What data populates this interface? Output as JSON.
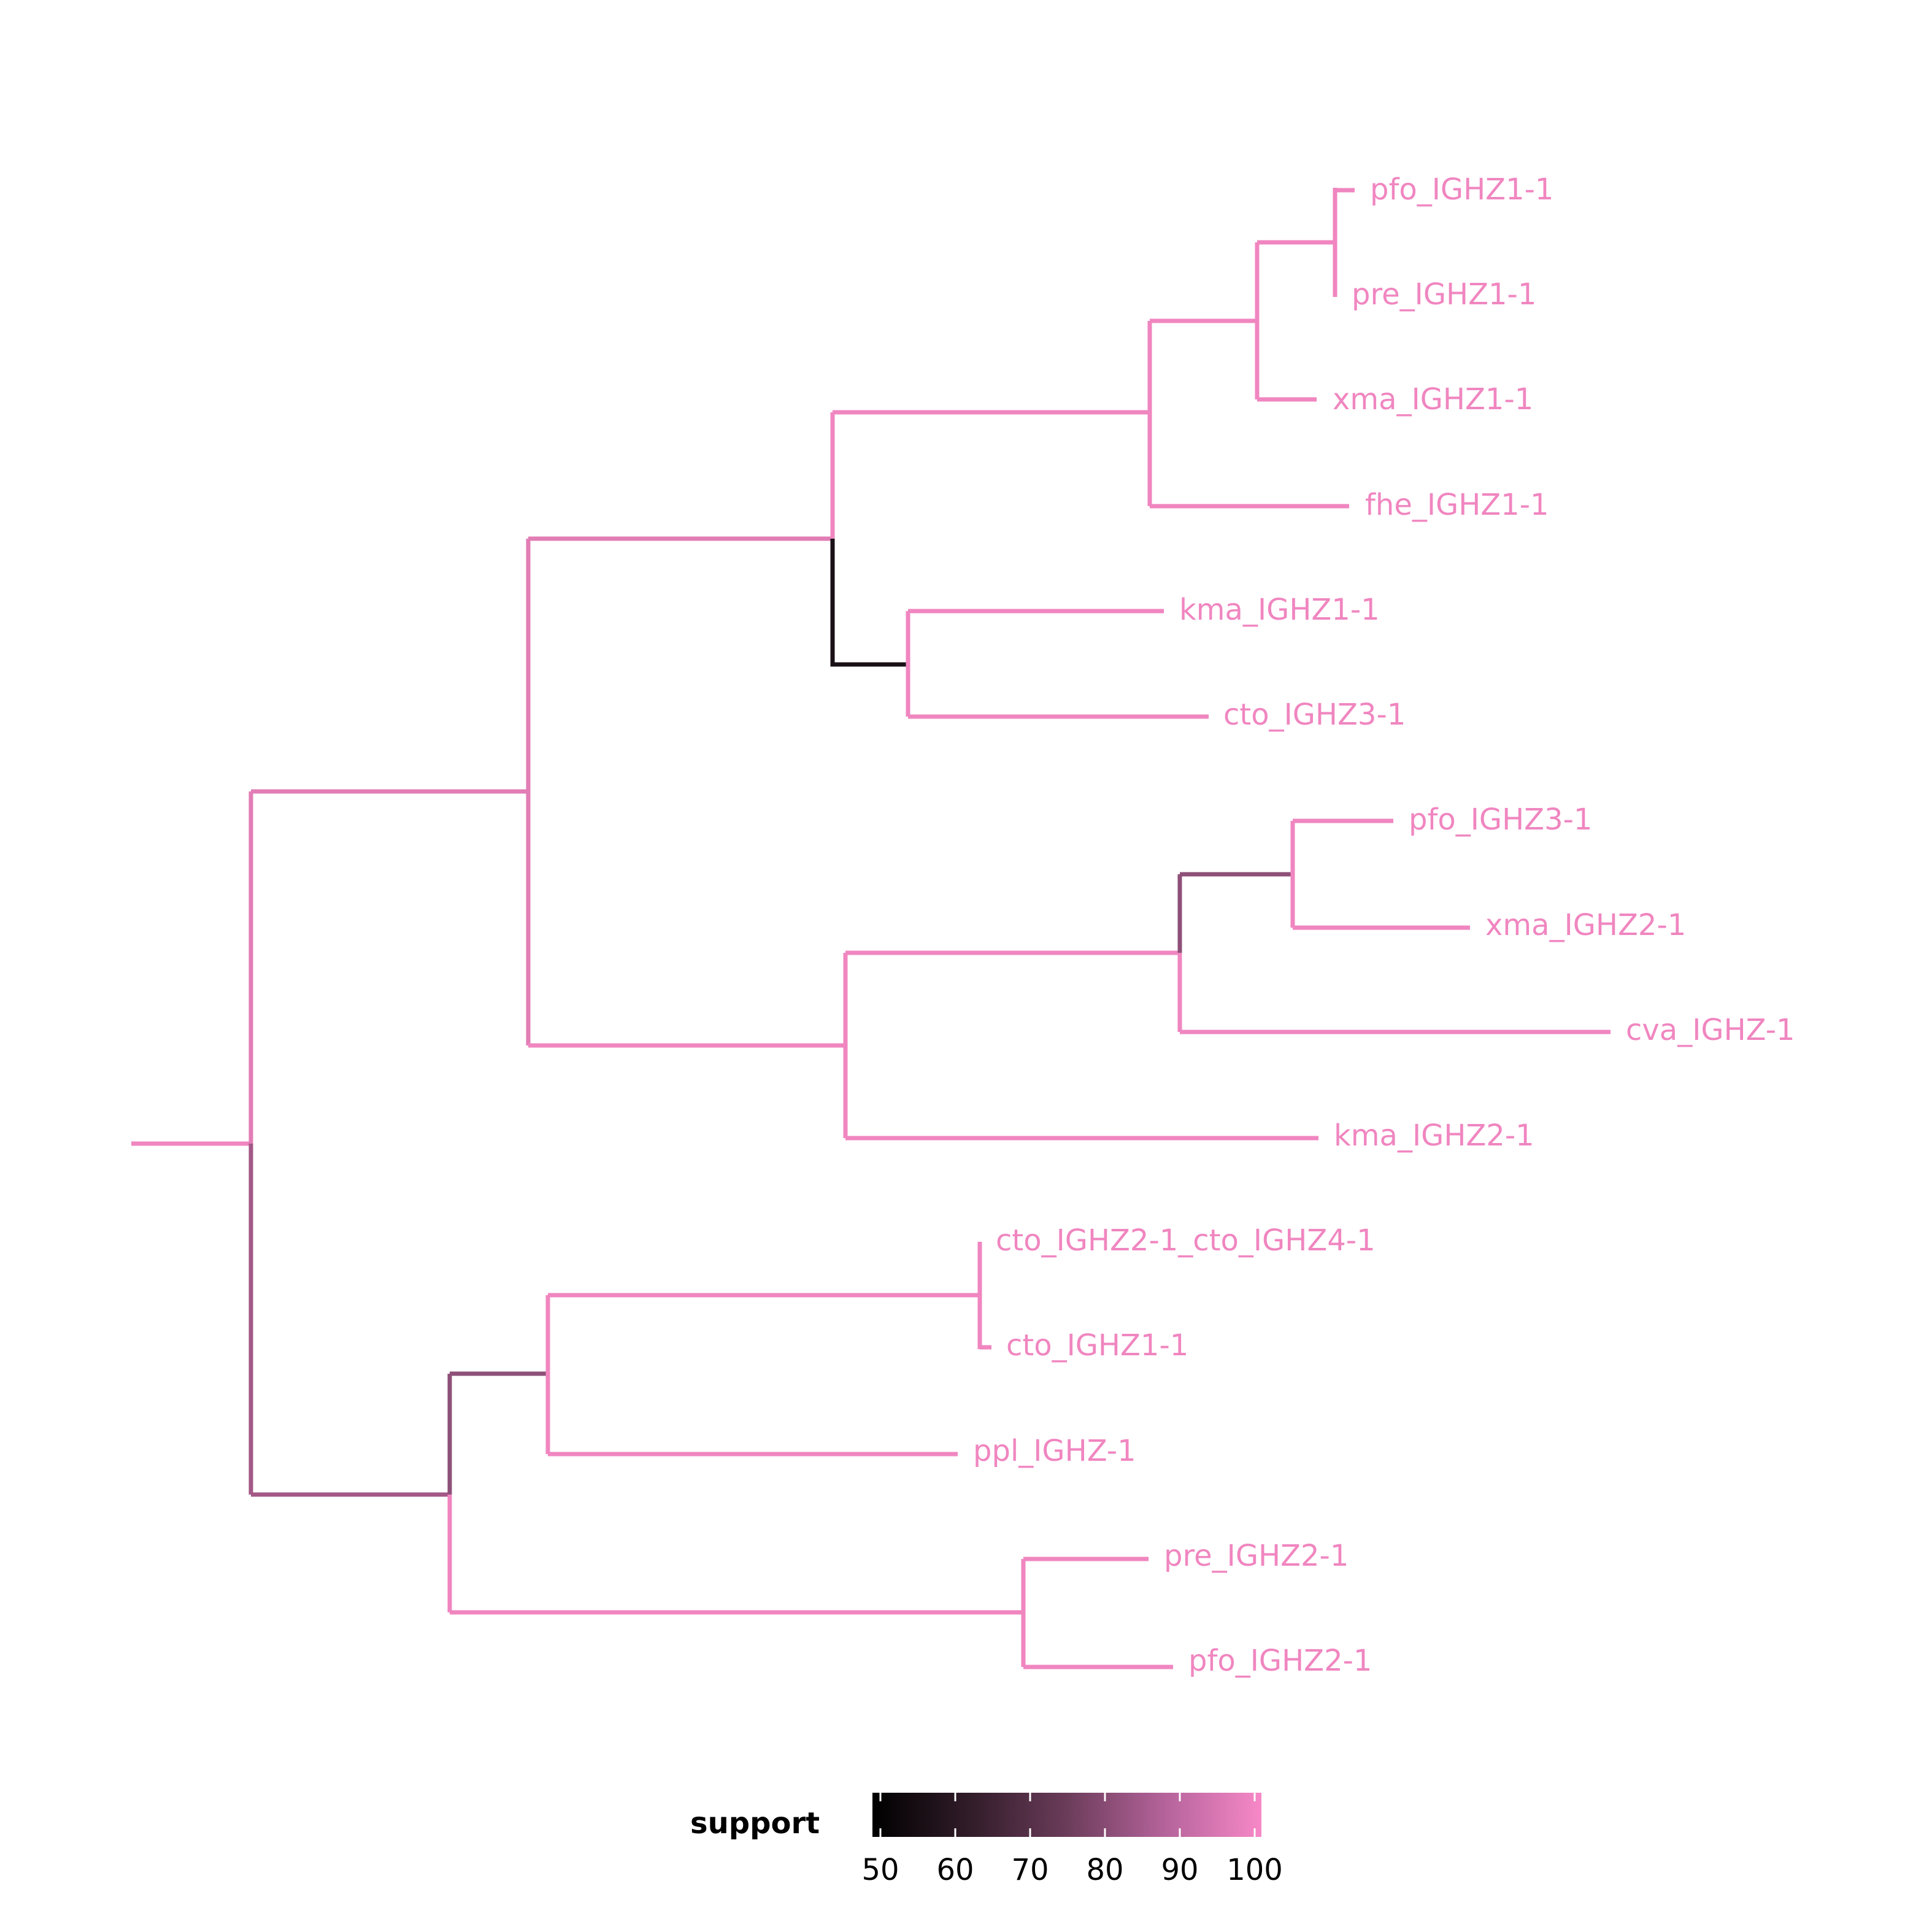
{
  "tree": {
    "tips": [
      {
        "id": "t1",
        "label": "pfo_IGHZ1-1"
      },
      {
        "id": "t2",
        "label": "pre_IGHZ1-1"
      },
      {
        "id": "t3",
        "label": "xma_IGHZ1-1"
      },
      {
        "id": "t4",
        "label": "fhe_IGHZ1-1"
      },
      {
        "id": "t5",
        "label": "kma_IGHZ1-1"
      },
      {
        "id": "t6",
        "label": "cto_IGHZ3-1"
      },
      {
        "id": "t7",
        "label": "pfo_IGHZ3-1"
      },
      {
        "id": "t8",
        "label": "xma_IGHZ2-1"
      },
      {
        "id": "t9",
        "label": "cva_IGHZ-1"
      },
      {
        "id": "t10",
        "label": "kma_IGHZ2-1"
      },
      {
        "id": "t11",
        "label": "cto_IGHZ2-1_cto_IGHZ4-1"
      },
      {
        "id": "t12",
        "label": "cto_IGHZ1-1"
      },
      {
        "id": "t13",
        "label": "ppl_IGHZ-1"
      },
      {
        "id": "t14",
        "label": "pre_IGHZ2-1"
      },
      {
        "id": "t15",
        "label": "pfo_IGHZ2-1"
      }
    ],
    "label_color": "#f086c0"
  },
  "legend": {
    "title": "support",
    "ticks": [
      "50",
      "60",
      "70",
      "80",
      "90",
      "100"
    ],
    "range": [
      50,
      100
    ],
    "colors": {
      "low": "#000000",
      "high": "#f788c8"
    }
  }
}
